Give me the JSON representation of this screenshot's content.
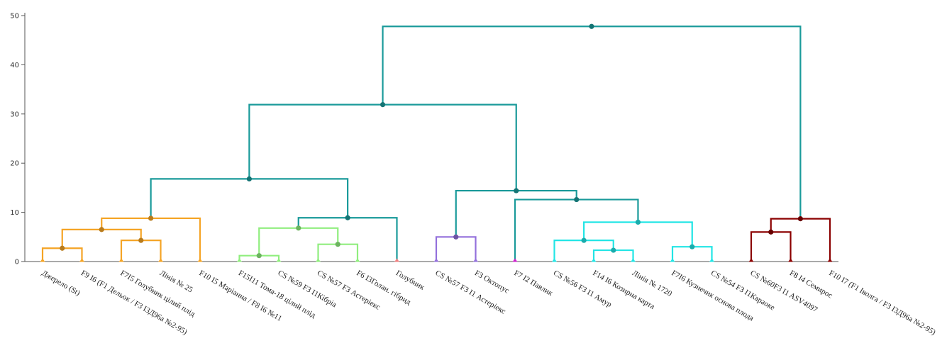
{
  "chart_data": {
    "type": "dendrogram",
    "ylim": [
      0,
      50
    ],
    "yticks": [
      0,
      10,
      20,
      30,
      40,
      50
    ],
    "grid": false,
    "leaves": [
      {
        "label": "Джерело (St)",
        "color": "#f5a425"
      },
      {
        "label": "F9 I6 (F1 Дельок / F3 I3Д96а №2-95)",
        "color": "#f5a425"
      },
      {
        "label": "F7I5 Голубник цілий плід",
        "color": "#f5a425"
      },
      {
        "label": "Лінія № 25",
        "color": "#f5a425"
      },
      {
        "label": "F10 I5 Маріанна / F8 I6  №11",
        "color": "#f5a425"
      },
      {
        "label": "F15I11 Тома-18 цілий плід",
        "color": "#90ee7e"
      },
      {
        "label": "CS №59 F3  I1Кібріа",
        "color": "#90ee7e"
      },
      {
        "label": "CS №57 F3 Астеріекс",
        "color": "#90ee7e"
      },
      {
        "label": "F6 I3Голан. гібрид",
        "color": "#90ee7e"
      },
      {
        "label": "Голубник",
        "color": "#f08080"
      },
      {
        "label": "CS №57 F3  I1 Астеріекс",
        "color": "#9370db"
      },
      {
        "label": "F3 Октопус",
        "color": "#9370db"
      },
      {
        "label": "F7 I2 Павлик",
        "color": "#cc22cc"
      },
      {
        "label": "CS №56 F3  I1 Амур",
        "color": "#22e5e5"
      },
      {
        "label": "F14  I6 Козирна карта",
        "color": "#22e5e5"
      },
      {
        "label": "Лінія № 1720",
        "color": "#22e5e5"
      },
      {
        "label": "F7I6 Кузнечик основа плода",
        "color": "#22e5e5"
      },
      {
        "label": "CS №54  F3  I1Караоке",
        "color": "#22e5e5"
      },
      {
        "label": "CS №60F3  I1 ASV4097",
        "color": "#8b0000"
      },
      {
        "label": "F8 I4 Семирос",
        "color": "#8b0000"
      },
      {
        "label": "F10 I7 (F1 Іволга / F3 I3Д96а №2-95)",
        "color": "#8b0000"
      }
    ],
    "merges": [
      {
        "id": "m1",
        "children": [
          "L0",
          "L1"
        ],
        "height": 2.7,
        "color": "#f5a425"
      },
      {
        "id": "m2",
        "children": [
          "L2",
          "L3"
        ],
        "height": 4.3,
        "color": "#f5a425"
      },
      {
        "id": "m3",
        "children": [
          "m1",
          "m2"
        ],
        "height": 6.5,
        "color": "#f5a425"
      },
      {
        "id": "m4",
        "children": [
          "m3",
          "L4"
        ],
        "height": 8.8,
        "color": "#f5a425"
      },
      {
        "id": "m5",
        "children": [
          "L5",
          "L6"
        ],
        "height": 1.2,
        "color": "#90ee7e"
      },
      {
        "id": "m6",
        "children": [
          "L7",
          "L8"
        ],
        "height": 3.5,
        "color": "#90ee7e"
      },
      {
        "id": "m7",
        "children": [
          "m5",
          "m6"
        ],
        "height": 6.8,
        "color": "#90ee7e"
      },
      {
        "id": "m8",
        "children": [
          "m7",
          "L9"
        ],
        "height": 8.9,
        "color": "#1a9a9a"
      },
      {
        "id": "m9",
        "children": [
          "m4",
          "m8"
        ],
        "height": 16.8,
        "color": "#1a9a9a"
      },
      {
        "id": "m10",
        "children": [
          "L10",
          "L11"
        ],
        "height": 5.0,
        "color": "#9370db"
      },
      {
        "id": "m11",
        "children": [
          "L14",
          "L15"
        ],
        "height": 2.3,
        "color": "#22e5e5"
      },
      {
        "id": "m12",
        "children": [
          "L13",
          "m11"
        ],
        "height": 4.3,
        "color": "#22e5e5"
      },
      {
        "id": "m13",
        "children": [
          "L16",
          "L17"
        ],
        "height": 3.0,
        "color": "#22e5e5"
      },
      {
        "id": "m14",
        "children": [
          "m12",
          "m13"
        ],
        "height": 8.0,
        "color": "#22e5e5"
      },
      {
        "id": "m15",
        "children": [
          "L12",
          "m14"
        ],
        "height": 12.6,
        "color": "#1a9a9a"
      },
      {
        "id": "m16",
        "children": [
          "m10",
          "m15"
        ],
        "height": 14.4,
        "color": "#1a9a9a"
      },
      {
        "id": "m17",
        "children": [
          "m9",
          "m16"
        ],
        "height": 31.9,
        "color": "#1a9a9a"
      },
      {
        "id": "m18",
        "children": [
          "L18",
          "L19"
        ],
        "height": 6.0,
        "color": "#8b0000"
      },
      {
        "id": "m19",
        "children": [
          "m18",
          "L20"
        ],
        "height": 8.7,
        "color": "#8b0000"
      },
      {
        "id": "m20",
        "children": [
          "m17",
          "m19"
        ],
        "height": 47.8,
        "color": "#1a9a9a"
      }
    ]
  }
}
